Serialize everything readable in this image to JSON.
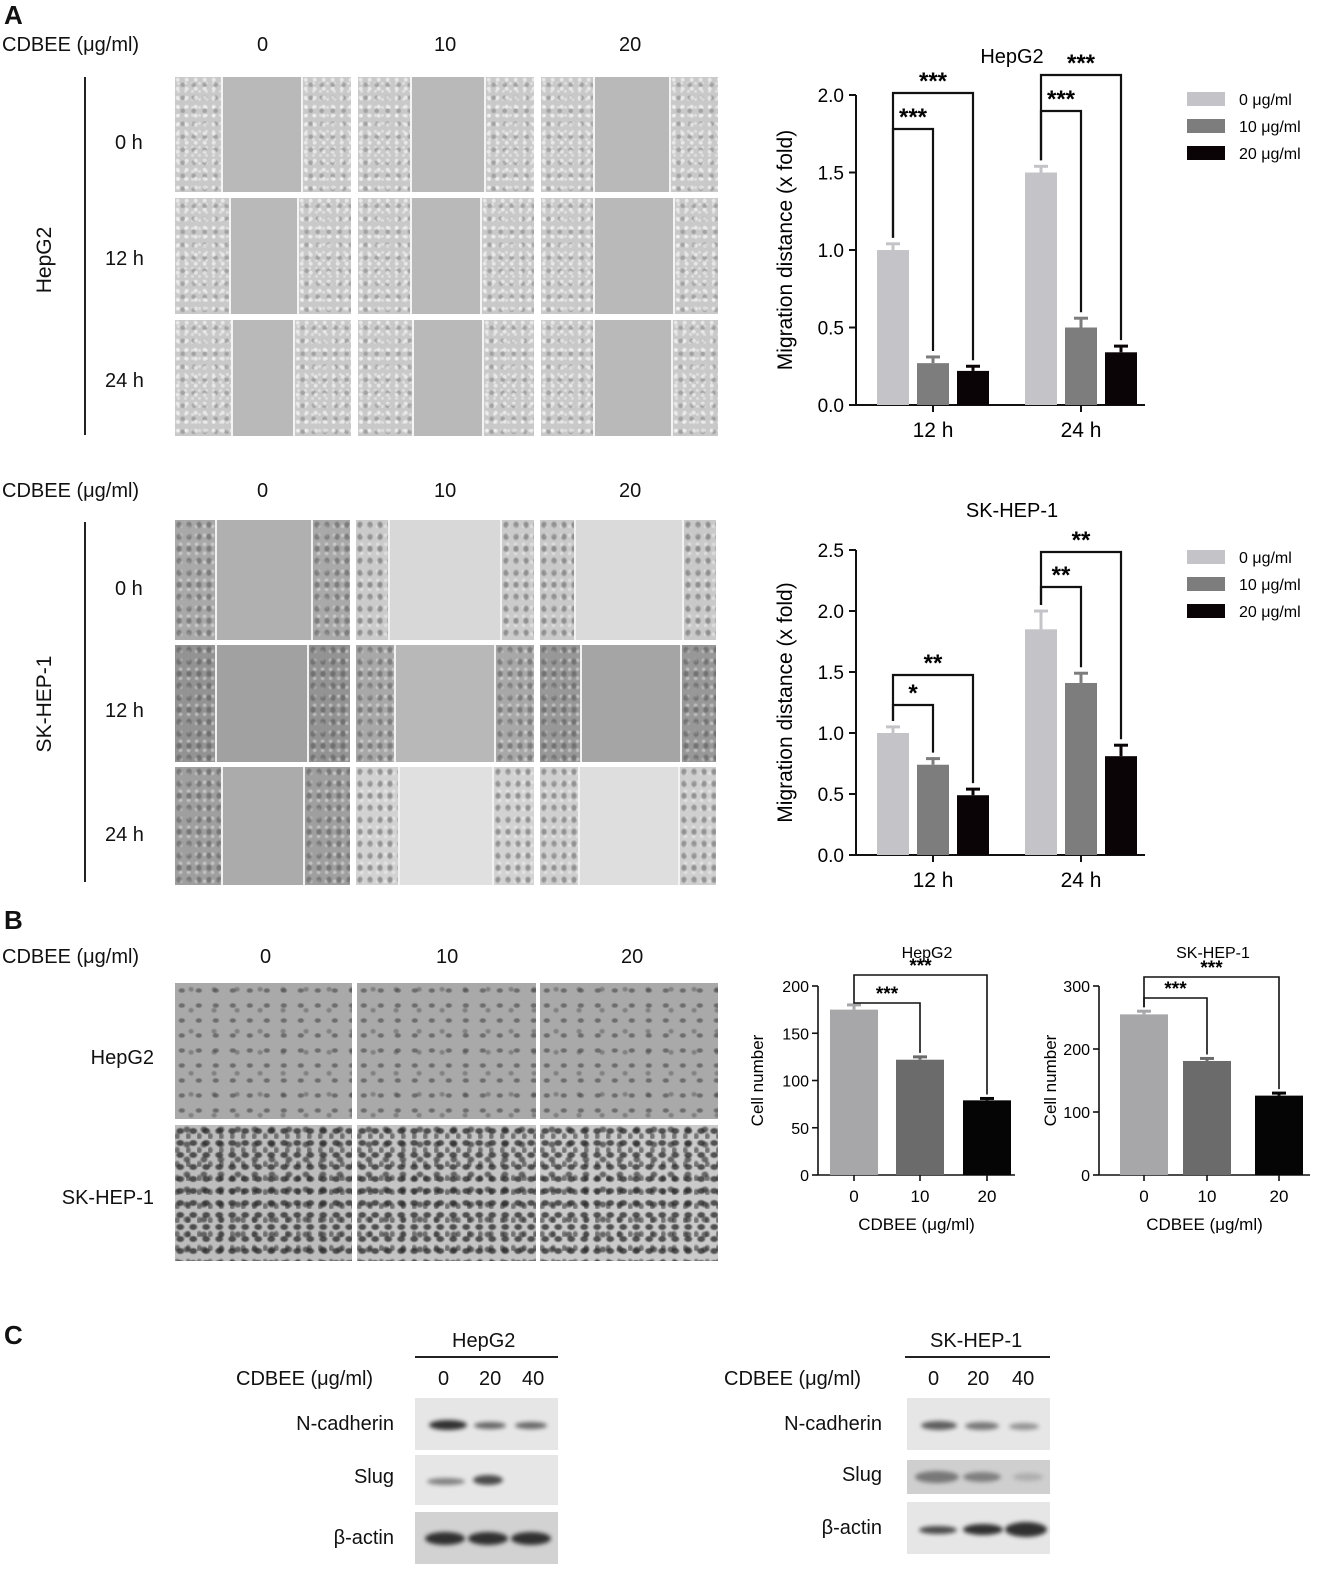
{
  "panel_a": {
    "letter": "A",
    "hepg2_block": {
      "dose_header_label": "CDBEE (μg/ml)",
      "doses": [
        "0",
        "10",
        "20"
      ],
      "row_group_label": "HepG2",
      "times": [
        "0 h",
        "12 h",
        "24 h"
      ]
    },
    "skhep1_block": {
      "dose_header_label": "CDBEE (μg/ml)",
      "doses": [
        "0",
        "10",
        "20"
      ],
      "row_group_label": "SK-HEP-1",
      "times": [
        "0 h",
        "12 h",
        "24 h"
      ]
    }
  },
  "panel_b": {
    "letter": "B",
    "dose_header_label": "CDBEE (μg/ml)",
    "doses": [
      "0",
      "10",
      "20"
    ],
    "rows": [
      "HepG2",
      "SK-HEP-1"
    ]
  },
  "panel_c": {
    "letter": "C",
    "blots": [
      {
        "cell_line": "HepG2",
        "dose_label": "CDBEE (μg/ml)",
        "doses": [
          "0",
          "20",
          "40"
        ],
        "proteins": [
          "N-cadherin",
          "Slug",
          "β-actin"
        ]
      },
      {
        "cell_line": "SK-HEP-1",
        "dose_label": "CDBEE (μg/ml)",
        "doses": [
          "0",
          "20",
          "40"
        ],
        "proteins": [
          "N-cadherin",
          "Slug",
          "β-actin"
        ]
      }
    ]
  },
  "chart_data": [
    {
      "type": "bar",
      "title": "HepG2",
      "ylabel": "Migration distance (x fold)",
      "xlabel": "",
      "ylim": [
        0,
        2.0
      ],
      "yticks": [
        "0.0",
        "0.5",
        "1.0",
        "1.5",
        "2.0"
      ],
      "categories": [
        "12 h",
        "24 h"
      ],
      "series": [
        {
          "name": "0 μg/ml",
          "values": [
            1.0,
            1.5
          ],
          "errors": [
            0.04,
            0.04
          ],
          "color": "#c4c4c8"
        },
        {
          "name": "10 μg/ml",
          "values": [
            0.27,
            0.5
          ],
          "errors": [
            0.04,
            0.06
          ],
          "color": "#7d7d7d"
        },
        {
          "name": "20 μg/ml",
          "values": [
            0.22,
            0.34
          ],
          "errors": [
            0.03,
            0.04
          ],
          "color": "#0a0406"
        }
      ],
      "significance": [
        {
          "category": "12 h",
          "text": "***",
          "from": 0,
          "to": 1
        },
        {
          "category": "12 h",
          "text": "***",
          "from": 0,
          "to": 2
        },
        {
          "category": "24 h",
          "text": "***",
          "from": 0,
          "to": 1
        },
        {
          "category": "24 h",
          "text": "***",
          "from": 0,
          "to": 2
        }
      ],
      "legend": "right"
    },
    {
      "type": "bar",
      "title": "SK-HEP-1",
      "ylabel": "Migration distance (x fold)",
      "xlabel": "",
      "ylim": [
        0,
        2.5
      ],
      "yticks": [
        "0.0",
        "0.5",
        "1.0",
        "1.5",
        "2.0",
        "2.5"
      ],
      "categories": [
        "12 h",
        "24 h"
      ],
      "series": [
        {
          "name": "0 μg/ml",
          "values": [
            1.0,
            1.85
          ],
          "errors": [
            0.05,
            0.15
          ],
          "color": "#c4c4c8"
        },
        {
          "name": "10 μg/ml",
          "values": [
            0.74,
            1.41
          ],
          "errors": [
            0.05,
            0.08
          ],
          "color": "#7d7d7d"
        },
        {
          "name": "20 μg/ml",
          "values": [
            0.49,
            0.81
          ],
          "errors": [
            0.05,
            0.09
          ],
          "color": "#0a0406"
        }
      ],
      "significance": [
        {
          "category": "12 h",
          "text": "*",
          "from": 0,
          "to": 1
        },
        {
          "category": "12 h",
          "text": "**",
          "from": 0,
          "to": 2
        },
        {
          "category": "24 h",
          "text": "**",
          "from": 0,
          "to": 1
        },
        {
          "category": "24 h",
          "text": "**",
          "from": 0,
          "to": 2
        }
      ],
      "legend": "right"
    },
    {
      "type": "bar",
      "title": "HepG2",
      "ylabel": "Cell number",
      "xlabel": "CDBEE (μg/ml)",
      "ylim": [
        0,
        200
      ],
      "yticks": [
        "0",
        "50",
        "100",
        "150",
        "200"
      ],
      "categories": [
        "0",
        "10",
        "20"
      ],
      "values": [
        175,
        122,
        79
      ],
      "errors": [
        5,
        3,
        2
      ],
      "colors": [
        "#a7a7aa",
        "#6b6b6b",
        "#050505"
      ],
      "significance": [
        {
          "text": "***",
          "from": 0,
          "to": 1
        },
        {
          "text": "***",
          "from": 0,
          "to": 2
        }
      ]
    },
    {
      "type": "bar",
      "title": "SK-HEP-1",
      "ylabel": "Cell number",
      "xlabel": "CDBEE (μg/ml)",
      "ylim": [
        0,
        300
      ],
      "yticks": [
        "0",
        "100",
        "200",
        "300"
      ],
      "categories": [
        "0",
        "10",
        "20"
      ],
      "values": [
        255,
        181,
        126
      ],
      "errors": [
        5,
        4,
        4
      ],
      "colors": [
        "#a7a7aa",
        "#6b6b6b",
        "#050505"
      ],
      "significance": [
        {
          "text": "***",
          "from": 0,
          "to": 1
        },
        {
          "text": "***",
          "from": 0,
          "to": 2
        }
      ]
    }
  ]
}
